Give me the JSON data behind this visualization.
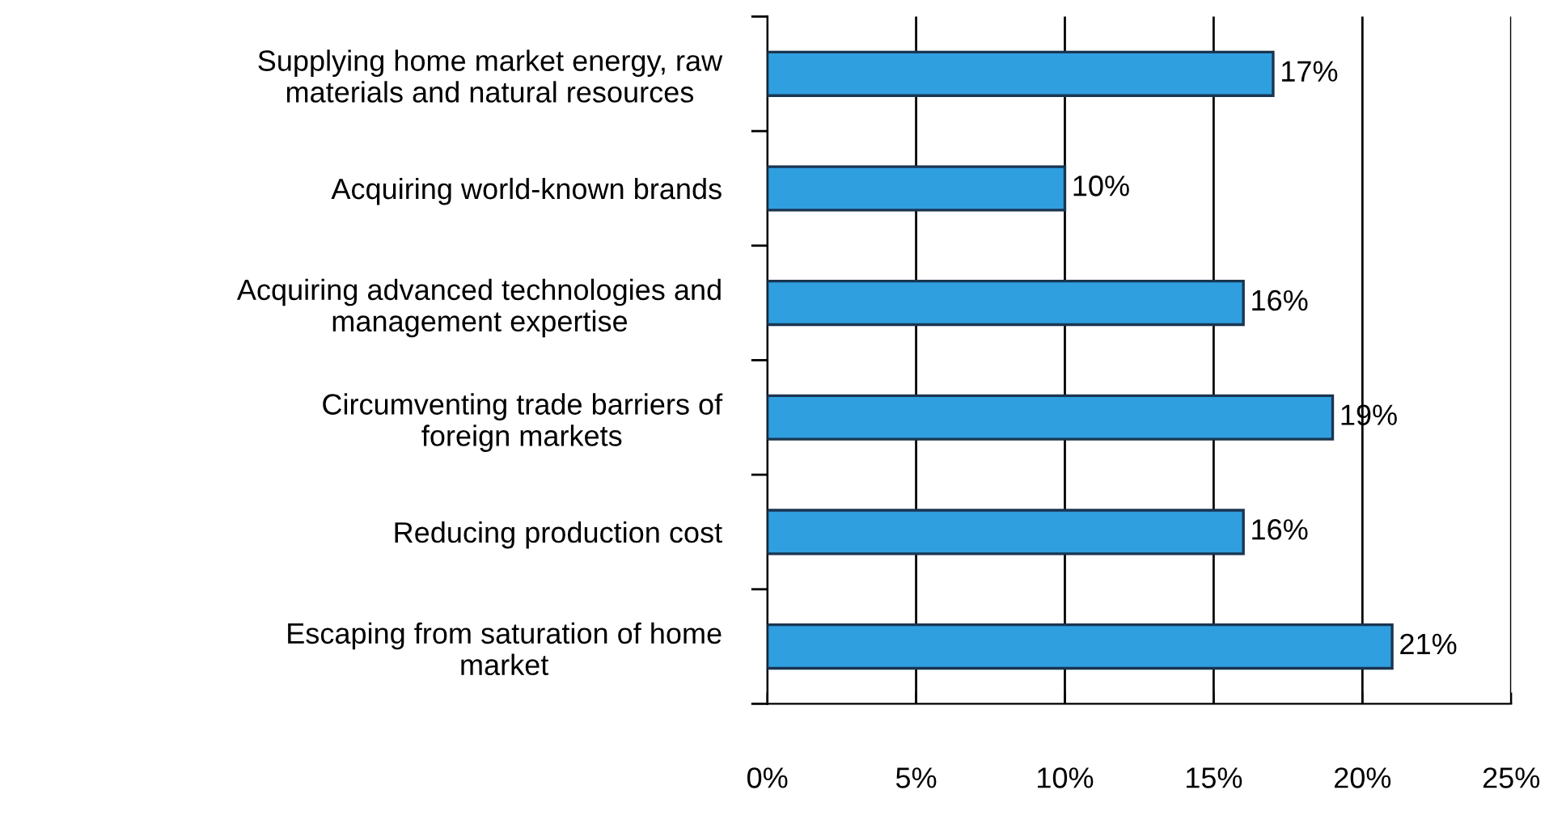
{
  "chart_data": {
    "type": "bar",
    "orientation": "horizontal",
    "categories": [
      "Supplying home market energy, raw\nmaterials and natural resources",
      "Acquiring world-known brands",
      "Acquiring advanced technologies and\nmanagement expertise",
      "Circumventing trade barriers of\nforeign markets",
      "Reducing production cost",
      "Escaping from saturation of home\nmarket"
    ],
    "values": [
      17,
      10,
      16,
      19,
      16,
      21
    ],
    "value_labels": [
      "17%",
      "10%",
      "16%",
      "19%",
      "16%",
      "21%"
    ],
    "color": "#2f9fe0",
    "xlim": [
      0,
      25
    ],
    "xticks": [
      {
        "value": 0,
        "label": "0%"
      },
      {
        "value": 5,
        "label": "5%"
      },
      {
        "value": 10,
        "label": "10%"
      },
      {
        "value": 15,
        "label": "15%"
      },
      {
        "value": 20,
        "label": "20%"
      },
      {
        "value": 25,
        "label": "25%"
      }
    ],
    "grid": "x"
  }
}
